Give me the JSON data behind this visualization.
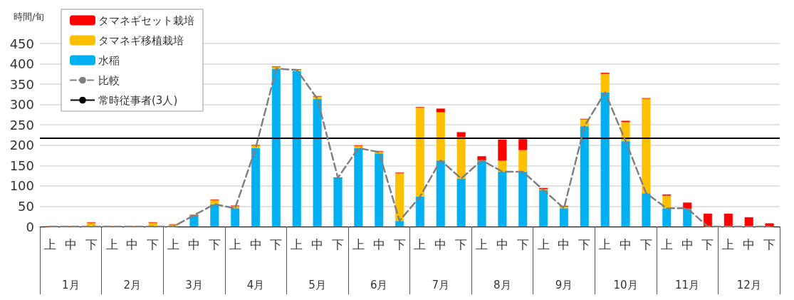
{
  "chart_data": {
    "type": "bar",
    "stacked": true,
    "ylabel": "時間/旬",
    "categories": [
      "上",
      "中",
      "下",
      "上",
      "中",
      "下",
      "上",
      "中",
      "下",
      "上",
      "中",
      "下",
      "上",
      "中",
      "下",
      "上",
      "中",
      "下",
      "上",
      "中",
      "下",
      "上",
      "中",
      "下",
      "上",
      "中",
      "下",
      "上",
      "中",
      "下",
      "上",
      "中",
      "下",
      "上",
      "中",
      "下"
    ],
    "annotations": [
      "1月",
      "2月",
      "3月",
      "4月",
      "5月",
      "6月",
      "7月",
      "8月",
      "9月",
      "10月",
      "11月",
      "12月"
    ],
    "series": [
      {
        "name": "水稲",
        "color": "#00b0f0",
        "values": [
          0,
          0,
          0,
          0,
          0,
          0,
          0,
          28,
          55,
          45,
          193,
          388,
          382,
          314,
          120,
          193,
          180,
          14,
          74,
          163,
          118,
          163,
          135,
          135,
          90,
          45,
          247,
          330,
          210,
          82,
          45,
          44,
          0,
          0,
          0,
          0
        ]
      },
      {
        "name": "タマネギ移植栽培",
        "color": "#ffc000",
        "values": [
          0,
          0,
          10,
          0,
          0,
          10,
          5,
          0,
          11,
          6,
          7,
          5,
          4,
          6,
          0,
          6,
          5,
          118,
          219,
          118,
          102,
          0,
          27,
          53,
          2,
          4,
          17,
          45,
          47,
          233,
          31,
          0,
          0,
          0,
          0,
          0
        ]
      },
      {
        "name": "タマネギセット栽培",
        "color": "#ff0000",
        "values": [
          0,
          0,
          0,
          0,
          0,
          0,
          0,
          0,
          0,
          0,
          0,
          0,
          0,
          0,
          0,
          0,
          0,
          0,
          0,
          9,
          12,
          10,
          52,
          27,
          3,
          2,
          0,
          3,
          3,
          0,
          3,
          15,
          32,
          32,
          23,
          8
        ]
      },
      {
        "name": "比較",
        "type": "line",
        "color": "#808080",
        "line_style": "dashed",
        "values": [
          0,
          0,
          0,
          0,
          0,
          0,
          0,
          28,
          55,
          45,
          193,
          388,
          385,
          314,
          120,
          193,
          183,
          14,
          74,
          163,
          118,
          163,
          135,
          135,
          90,
          45,
          247,
          330,
          210,
          82,
          45,
          45,
          0,
          0,
          0,
          0
        ]
      }
    ],
    "ref_lines": [
      {
        "axis": "y",
        "value": 217,
        "label": "常時従事者(3人)",
        "color": "#000000"
      }
    ],
    "ylim": [
      0,
      450
    ],
    "yticks": [
      0,
      50,
      100,
      150,
      200,
      250,
      300,
      350,
      400,
      450
    ],
    "grid": "y",
    "legend": "top left"
  }
}
